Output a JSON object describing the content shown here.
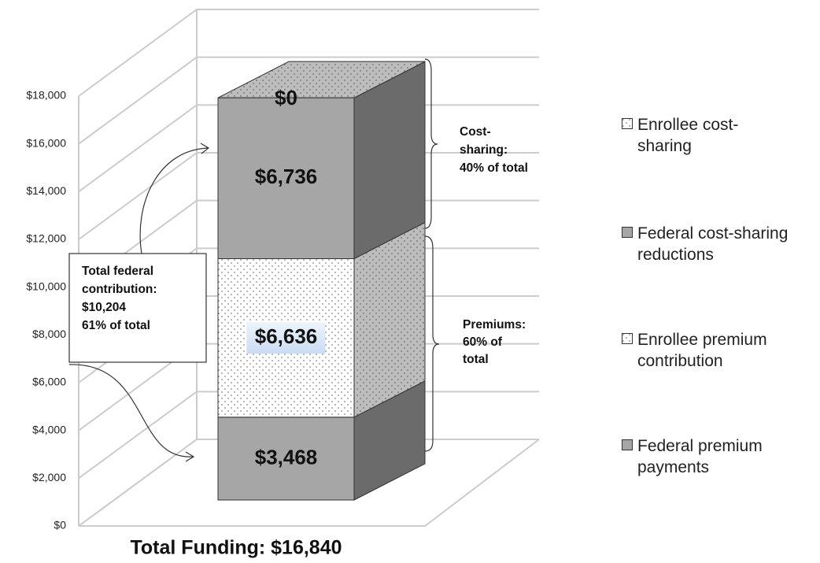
{
  "chart_data": {
    "type": "stacked_bar_3d",
    "categories": [
      "Total Funding: $16,840"
    ],
    "series": [
      {
        "name": "Federal premium payments",
        "color": "#a6a6a6",
        "pattern": "solid",
        "values": [
          3468
        ],
        "value_labels": [
          "$3,468"
        ]
      },
      {
        "name": "Enrollee premium contribution",
        "color": "#ffffff",
        "pattern": "dots",
        "values": [
          6636
        ],
        "value_labels": [
          "$6,636"
        ]
      },
      {
        "name": "Federal cost-sharing reductions",
        "color": "#a6a6a6",
        "pattern": "solid",
        "values": [
          6736
        ],
        "value_labels": [
          "$6,736"
        ]
      },
      {
        "name": "Enrollee cost-sharing",
        "color": "#ffffff",
        "pattern": "dots",
        "values": [
          0
        ],
        "value_labels": [
          "$0"
        ]
      }
    ],
    "ylim": [
      0,
      18000
    ],
    "yticks": [
      {
        "value": 0,
        "label": "$0"
      },
      {
        "value": 2000,
        "label": "$2,000"
      },
      {
        "value": 4000,
        "label": "$4,000"
      },
      {
        "value": 6000,
        "label": "$6,000"
      },
      {
        "value": 8000,
        "label": "$8,000"
      },
      {
        "value": 10000,
        "label": "$10,000"
      },
      {
        "value": 12000,
        "label": "$12,000"
      },
      {
        "value": 14000,
        "label": "$14,000"
      },
      {
        "value": 16000,
        "label": "$16,000"
      },
      {
        "value": 18000,
        "label": "$18,000"
      }
    ],
    "grid": true,
    "legend": "right",
    "annotations": [
      {
        "lines": [
          "Total federal",
          "contribution:",
          "$10,204",
          "61% of total"
        ]
      },
      {
        "lines": [
          "Cost-",
          "sharing:",
          "40% of total"
        ]
      },
      {
        "lines": [
          "Premiums:",
          "60% of",
          "total"
        ]
      }
    ]
  }
}
